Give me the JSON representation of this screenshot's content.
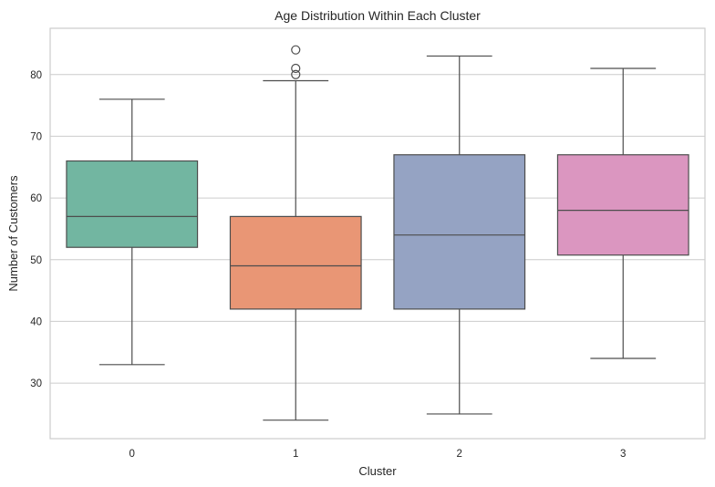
{
  "chart_data": {
    "type": "box",
    "title": "Age Distribution Within Each Cluster",
    "xlabel": "Cluster",
    "ylabel": "Number of Customers",
    "ylim": [
      21,
      87.5
    ],
    "yticks": [
      30,
      40,
      50,
      60,
      70,
      80
    ],
    "grid": "horizontal",
    "categories": [
      "0",
      "1",
      "2",
      "3"
    ],
    "colors": [
      "#72b6a1",
      "#e99675",
      "#95a3c3",
      "#db96c0"
    ],
    "boxes": [
      {
        "category": "0",
        "whisker_low": 33,
        "q1": 52,
        "median": 57,
        "q3": 66,
        "whisker_high": 76,
        "outliers": []
      },
      {
        "category": "1",
        "whisker_low": 24,
        "q1": 42,
        "median": 49,
        "q3": 57,
        "whisker_high": 79,
        "outliers": [
          80,
          81,
          84
        ]
      },
      {
        "category": "2",
        "whisker_low": 25,
        "q1": 42,
        "median": 54,
        "q3": 67,
        "whisker_high": 83,
        "outliers": []
      },
      {
        "category": "3",
        "whisker_low": 34,
        "q1": 50.75,
        "median": 58,
        "q3": 67,
        "whisker_high": 81,
        "outliers": []
      }
    ]
  }
}
